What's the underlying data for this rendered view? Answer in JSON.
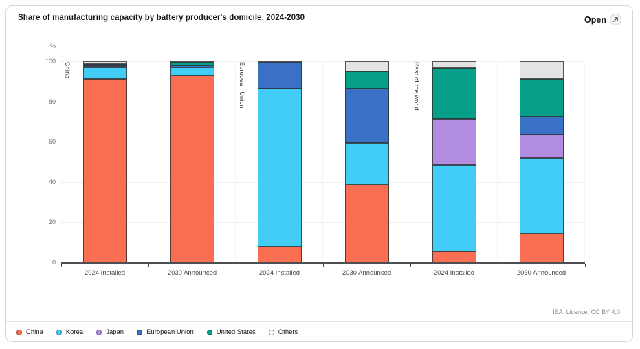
{
  "card": {
    "title": "Share of manufacturing capacity by battery producer's domicile, 2024-2030",
    "open_label": "Open",
    "source_link": "IEA. Licence: CC BY 4.0"
  },
  "chart_data": {
    "type": "bar",
    "stacked": true,
    "title": "Share of manufacturing capacity by battery producer's domicile, 2024-2030",
    "unit_label": "%",
    "ylim": [
      0,
      100
    ],
    "yticks": [
      0,
      20,
      40,
      60,
      80,
      100
    ],
    "grid": true,
    "legend_position": "bottom",
    "groups": [
      "China",
      "European Union",
      "Rest of the world"
    ],
    "categories": [
      "2024 Installed",
      "2030 Announced",
      "2024 Installed",
      "2030 Announced",
      "2024 Installed",
      "2030 Announced"
    ],
    "series": [
      {
        "name": "China",
        "color": "#fa6e51",
        "values": [
          91,
          93,
          8,
          38.5,
          5.5,
          14.5
        ]
      },
      {
        "name": "Korea",
        "color": "#41cdf5",
        "values": [
          6,
          4,
          78.5,
          21,
          43,
          37.5
        ]
      },
      {
        "name": "Japan",
        "color": "#b18ce1",
        "values": [
          0.7,
          0,
          0,
          0,
          23,
          11.5
        ]
      },
      {
        "name": "European Union",
        "color": "#3b71c5",
        "values": [
          0.8,
          1,
          13,
          27,
          0,
          9
        ]
      },
      {
        "name": "United States",
        "color": "#06a088",
        "values": [
          0,
          1.5,
          0,
          8.5,
          25,
          18.5
        ]
      },
      {
        "name": "Others",
        "color": "#e3e3e3",
        "values": [
          1.5,
          0.5,
          0.5,
          5,
          3.5,
          9
        ]
      }
    ]
  }
}
